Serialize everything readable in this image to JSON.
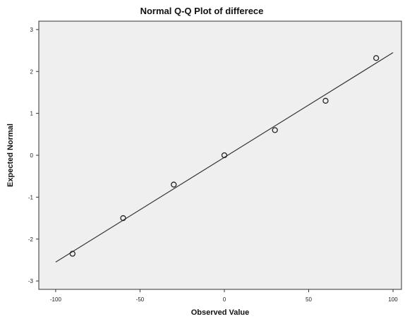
{
  "chart_data": {
    "type": "scatter",
    "title": "Normal Q-Q Plot of differece",
    "xlabel": "Observed Value",
    "ylabel": "Expected Normal",
    "xlim": [
      -110,
      105
    ],
    "ylim": [
      -3.2,
      3.2
    ],
    "x_ticks": [
      -100,
      -50,
      0,
      50,
      100
    ],
    "y_ticks": [
      3,
      2,
      1,
      0,
      -1,
      -2,
      -3
    ],
    "x_tick_labels": [
      "-100",
      "-50",
      "0",
      "50",
      "100"
    ],
    "y_tick_labels": [
      "3",
      "2",
      "1",
      "0",
      "-1",
      "-2",
      "-3"
    ],
    "points": [
      {
        "x": -90,
        "y": -2.35
      },
      {
        "x": -60,
        "y": -1.5
      },
      {
        "x": -30,
        "y": -0.7
      },
      {
        "x": 0,
        "y": 0.0
      },
      {
        "x": 30,
        "y": 0.6
      },
      {
        "x": 60,
        "y": 1.3
      },
      {
        "x": 90,
        "y": 2.32
      }
    ],
    "reference_line": {
      "x_start": -100,
      "y_start": -2.55,
      "x_end": 100,
      "y_end": 2.45
    },
    "grid": false,
    "legend": "none",
    "colors": {
      "plot_background": "#efefef",
      "axis": "#333333",
      "marker_stroke": "#222222",
      "line": "#333333"
    }
  }
}
